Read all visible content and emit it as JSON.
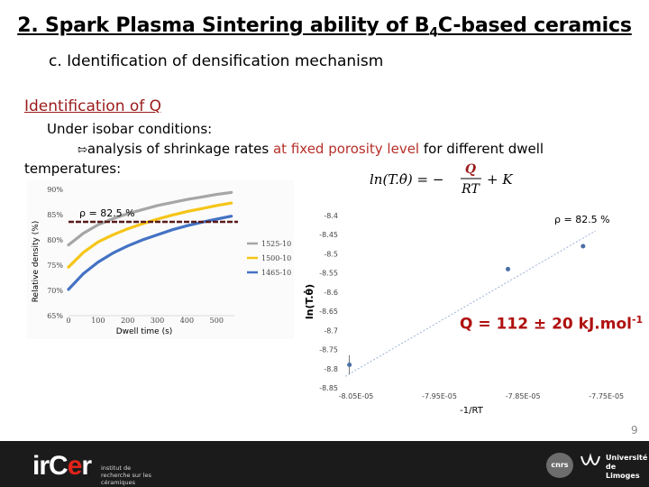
{
  "slide": {
    "title": "2. Spark Plasma Sintering ability of B",
    "title_sub": "4",
    "title_end": "C-based ceramics",
    "subtitle": "c. Identification of densification mechanism",
    "section_heading": "Identification of Q",
    "line1": "Under isobar conditions:",
    "line2_pre": "analysis of shrinkage rates ",
    "line2_highlight": "at fixed porosity level",
    "line2_post": " for different dwell",
    "line3": "temperatures:",
    "arrow_icon": "arrow-right-icon",
    "equation": {
      "lhs": "ln(T.θ̇) = −",
      "num": "Q",
      "den": "RT",
      "rhs": "+ K"
    },
    "q_result": "Q = 112 ± 20 kJ.mol",
    "q_result_exp": "-1",
    "page_number": "9",
    "accent_color": "#9b1b1b",
    "highlight_color": "#b5302a"
  },
  "footer": {
    "logo_main_a": "irC",
    "logo_main_b": "e",
    "logo_main_c": "r",
    "logo_sub": "institut de recherche sur les céramiques",
    "logo_cnrs": "cnrs",
    "logo_ul": "Université de Limoges"
  },
  "chart_data": [
    {
      "type": "line",
      "ylabel": "Relative density (%)",
      "xlabel": "Dwell time (s)",
      "annotation": "ρ = 82.5 %",
      "x_ticks": [
        "0",
        "100",
        "200",
        "300",
        "400",
        "500"
      ],
      "y_ticks": [
        "65%",
        "70%",
        "75%",
        "80%",
        "85%",
        "90%"
      ],
      "xlim": [
        0,
        560
      ],
      "ylim": [
        65,
        90
      ],
      "threshold": 82.5,
      "series": [
        {
          "name": "1525-10",
          "color": "#a6a6a6",
          "x": [
            0,
            50,
            100,
            150,
            200,
            250,
            300,
            350,
            400,
            450,
            500,
            550
          ],
          "y": [
            79.0,
            81.3,
            83.0,
            84.2,
            85.2,
            86.0,
            86.8,
            87.4,
            88.0,
            88.5,
            89.0,
            89.4
          ]
        },
        {
          "name": "1500-10",
          "color": "#f5c518",
          "x": [
            0,
            50,
            100,
            150,
            200,
            250,
            300,
            350,
            400,
            450,
            500,
            550
          ],
          "y": [
            74.6,
            77.5,
            79.6,
            81.0,
            82.2,
            83.2,
            84.1,
            84.9,
            85.6,
            86.2,
            86.8,
            87.3
          ]
        },
        {
          "name": "1465-10",
          "color": "#4472c4",
          "x": [
            0,
            50,
            100,
            150,
            200,
            250,
            300,
            350,
            400,
            450,
            500,
            550
          ],
          "y": [
            70.2,
            73.3,
            75.6,
            77.4,
            78.8,
            80.0,
            81.0,
            82.0,
            82.8,
            83.5,
            84.1,
            84.7
          ]
        }
      ]
    },
    {
      "type": "scatter",
      "ylabel": "ln(T.θ̇)",
      "xlabel": "-1/RT",
      "annotation": "ρ = 82.5 %",
      "x_ticks": [
        "-8.05E-05",
        "-7.95E-05",
        "-7.85E-05",
        "-7.75E-05"
      ],
      "y_ticks": [
        "-8.4",
        "-8.45",
        "-8.5",
        "-8.55",
        "-8.6",
        "-8.65",
        "-8.7",
        "-8.75",
        "-8.8",
        "-8.85"
      ],
      "xlim": [
        -8.05e-05,
        -7.7e-05
      ],
      "ylim": [
        -8.85,
        -8.4
      ],
      "points": [
        {
          "x": -8.045e-05,
          "y": -8.79,
          "yerr": 0.025,
          "xerr": 0
        },
        {
          "x": -7.855e-05,
          "y": -8.54,
          "yerr": 0,
          "xerr": 2.5e-08
        },
        {
          "x": -7.765e-05,
          "y": -8.48,
          "yerr": 0,
          "xerr": 1.5e-08
        }
      ],
      "trendline": {
        "x": [
          -8.05e-05,
          -7.75e-05
        ],
        "y": [
          -8.82,
          -8.44
        ]
      },
      "point_color": "#4a6fa5"
    }
  ]
}
